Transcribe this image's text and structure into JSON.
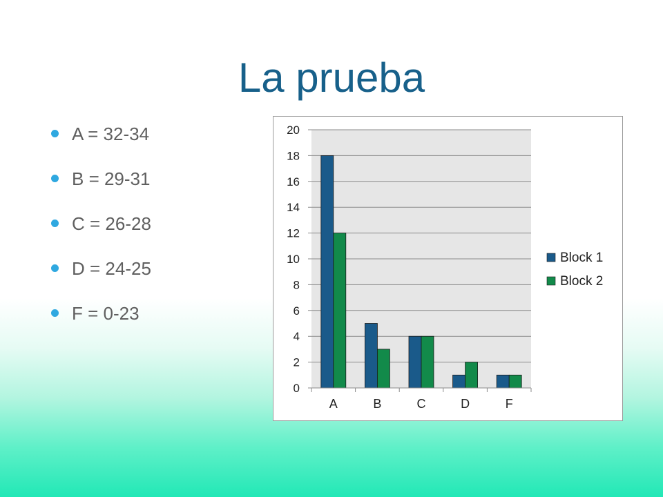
{
  "slide": {
    "title": "La prueba",
    "bullets": [
      "A = 32-34",
      "B = 29-31",
      "C = 26-28",
      "D = 24-25",
      "F = 0-23"
    ]
  },
  "colors": {
    "block1": "#1a5a8a",
    "block2": "#128a4a",
    "bullet": "#2fa8e0",
    "title": "#17608a"
  },
  "chart_data": {
    "type": "bar",
    "categories": [
      "A",
      "B",
      "C",
      "D",
      "F"
    ],
    "series": [
      {
        "name": "Block 1",
        "values": [
          18,
          5,
          4,
          1,
          1
        ]
      },
      {
        "name": "Block 2",
        "values": [
          12,
          3,
          4,
          2,
          1
        ]
      }
    ],
    "title": "",
    "xlabel": "",
    "ylabel": "",
    "ylim": [
      0,
      20
    ],
    "yticks": [
      0,
      2,
      4,
      6,
      8,
      10,
      12,
      14,
      16,
      18,
      20
    ],
    "grid": true,
    "legend": "right"
  }
}
